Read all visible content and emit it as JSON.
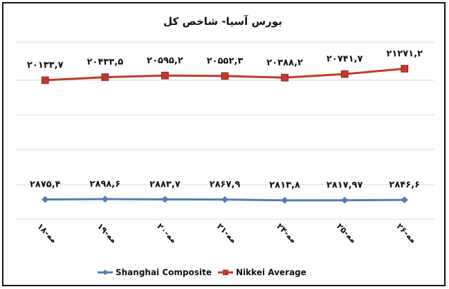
{
  "chart_data": {
    "type": "line",
    "title": "بورس آسیا- شاخص کل",
    "categories": [
      "۱۸-مه",
      "۱۹-مه",
      "۲۰-مه",
      "۲۱-مه",
      "۲۴-مه",
      "۲۵-مه",
      "۲۶-مه"
    ],
    "series": [
      {
        "name": "Nikkei Average",
        "color": "#c0392b",
        "values": [
          20133.7,
          20433.5,
          20595.2,
          20552.3,
          20388.2,
          20741.7,
          21271.2
        ],
        "labels": [
          "۲۰۱۳۳,۷",
          "۲۰۴۳۳,۵",
          "۲۰۵۹۵,۲",
          "۲۰۵۵۲,۳",
          "۲۰۳۸۸,۲",
          "۲۰۷۴۱,۷",
          "۲۱۲۷۱,۲"
        ]
      },
      {
        "name": "Shanghai Composite",
        "color": "#4a7ebb",
        "values": [
          2875.4,
          2898.6,
          2883.7,
          2867.9,
          2813.8,
          2817.97,
          2846.6
        ],
        "labels": [
          "۲۸۷۵,۴",
          "۲۸۹۸,۶",
          "۲۸۸۳,۷",
          "۲۸۶۷,۹",
          "۲۸۱۳,۸",
          "۲۸۱۷,۹۷",
          "۲۸۴۶,۶"
        ]
      }
    ],
    "gridlines": true,
    "legend_position": "bottom"
  }
}
